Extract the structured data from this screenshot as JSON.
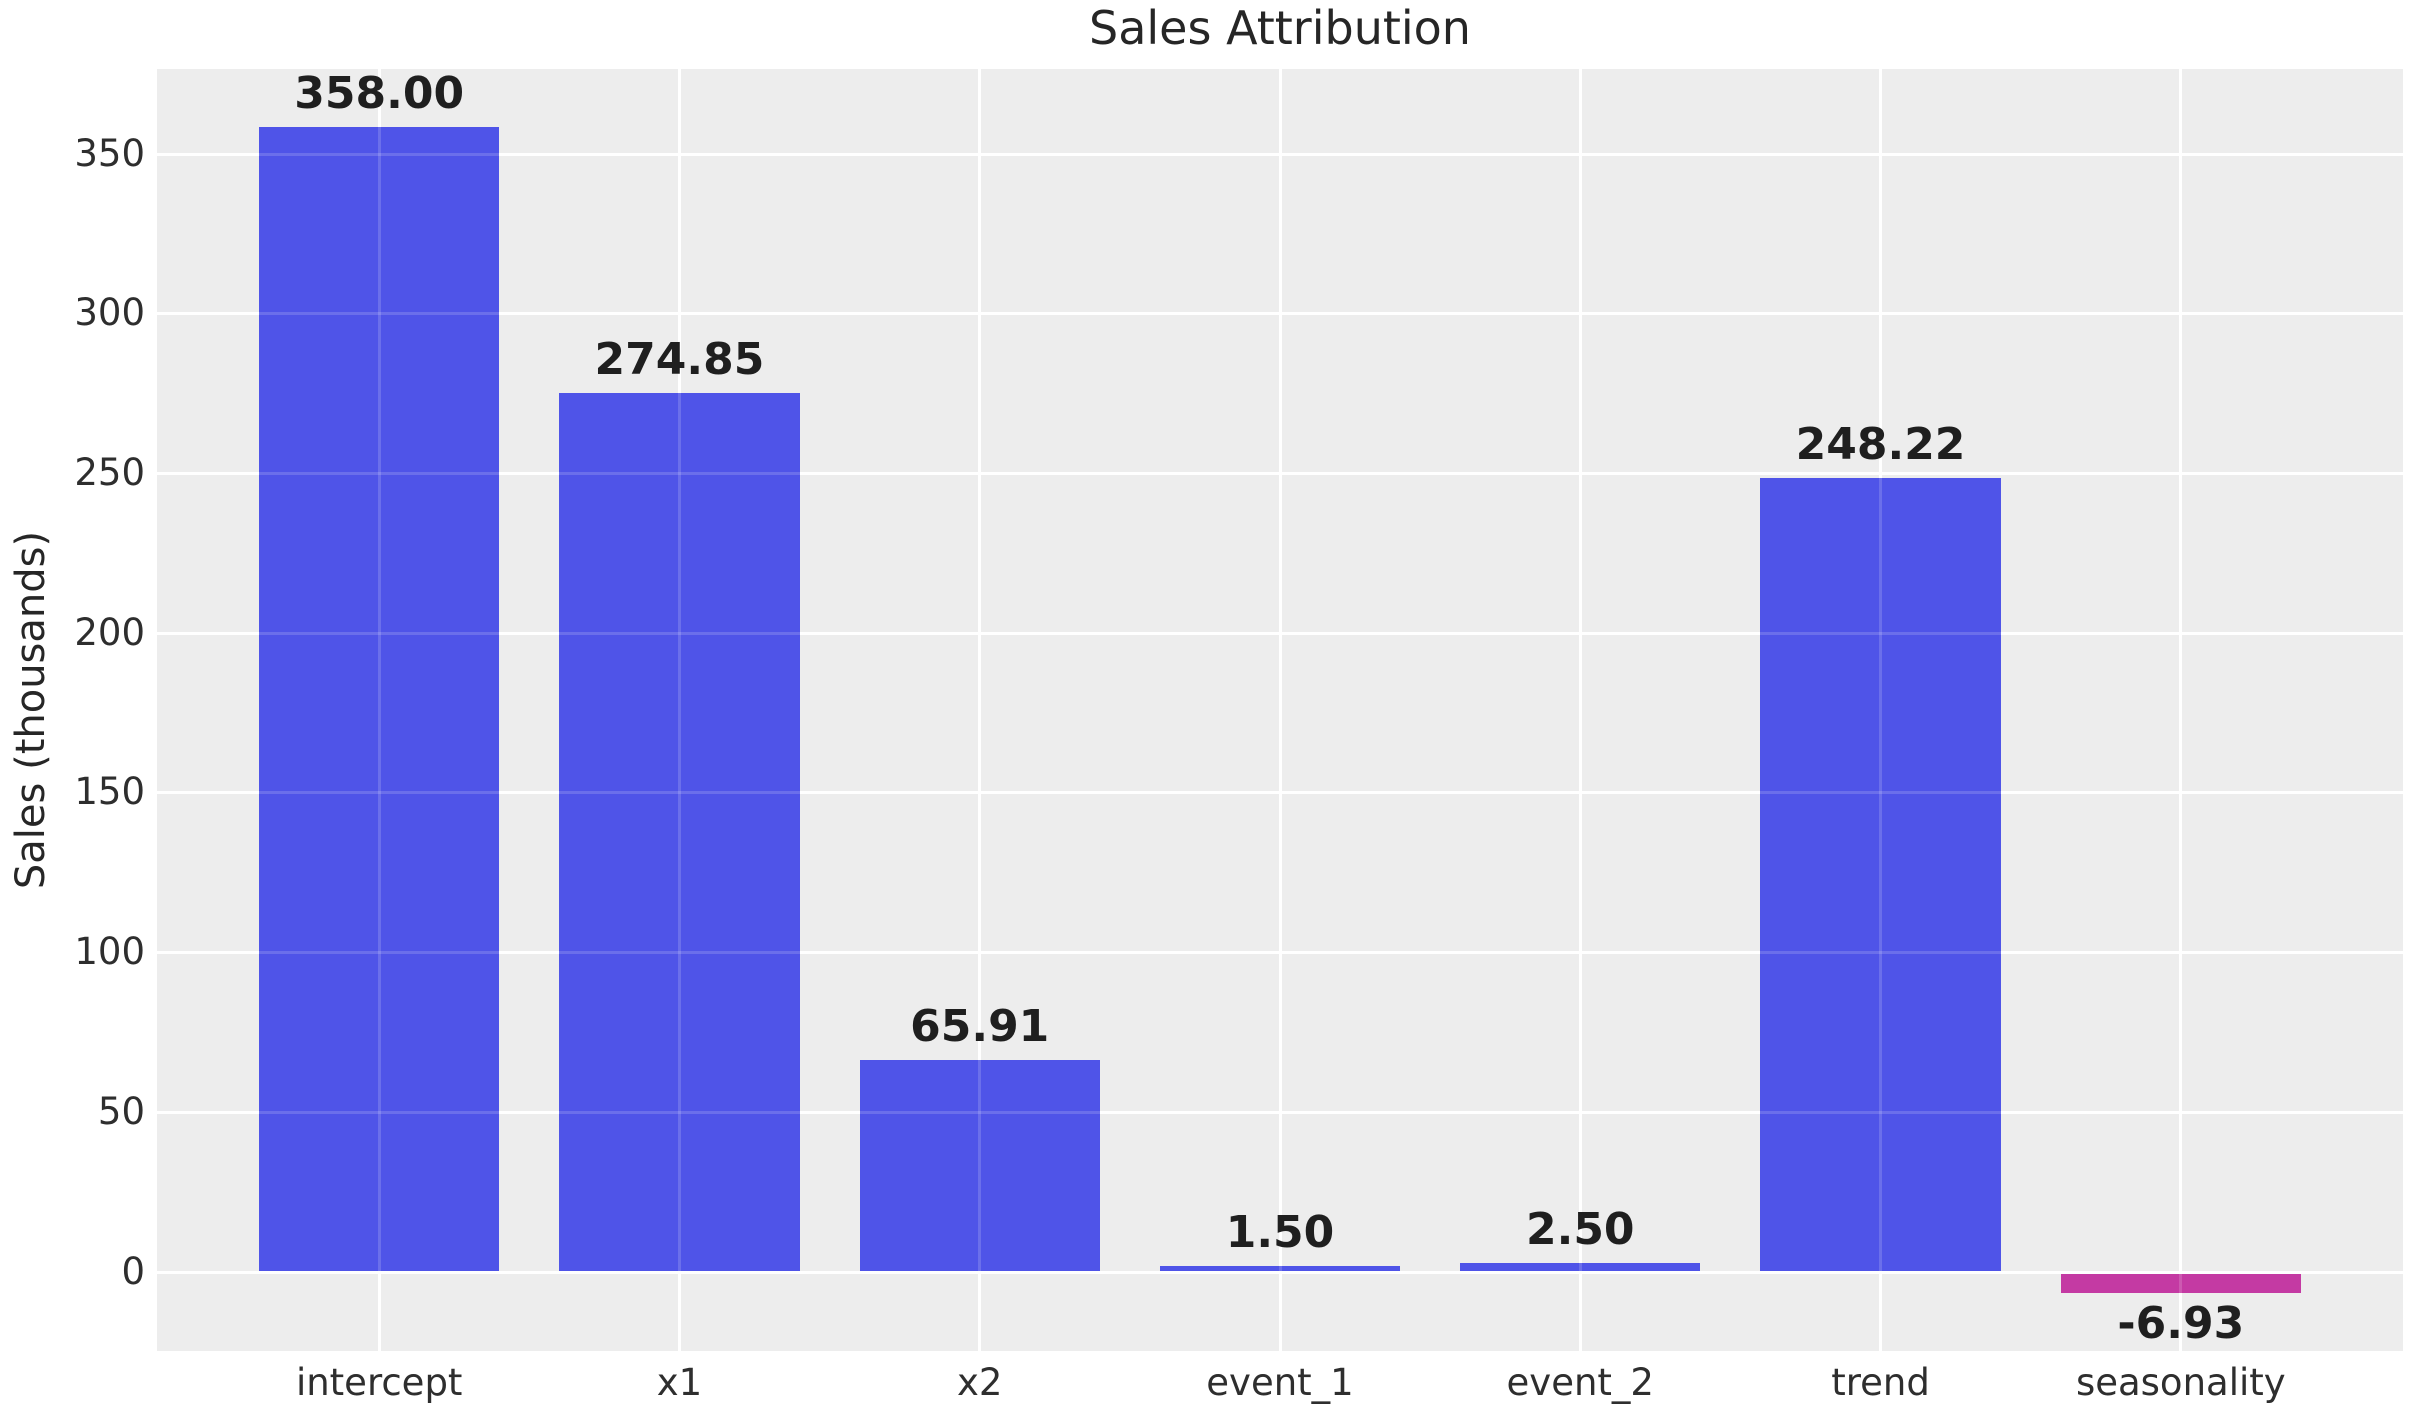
{
  "chart_data": {
    "type": "bar",
    "title": "Sales Attribution",
    "xlabel": "",
    "ylabel": "Sales (thousands)",
    "categories": [
      "intercept",
      "x1",
      "x2",
      "event_1",
      "event_2",
      "trend",
      "seasonality"
    ],
    "values": [
      358.0,
      274.85,
      65.91,
      1.5,
      2.5,
      248.22,
      -6.93
    ],
    "bar_labels": [
      "358.00",
      "274.85",
      "65.91",
      "1.50",
      "2.50",
      "248.22",
      "-6.93"
    ],
    "yticks": [
      0,
      50,
      100,
      150,
      200,
      250,
      300,
      350
    ],
    "ytick_labels": [
      "0",
      "50",
      "100",
      "150",
      "200",
      "250",
      "300",
      "350"
    ],
    "ylim": [
      -25.2,
      376.2
    ],
    "xlim_units": [
      -0.74,
      6.74
    ],
    "bar_width_units": 0.8,
    "grid": true,
    "legend": "none",
    "colors": {
      "positive_bar": "#4f54e8",
      "negative_bar": "#c43aa3",
      "plot_background": "#ededed",
      "grid_line": "#ffffff",
      "grid_overlay": "rgba(255,255,255,0.16)",
      "title_text": "#262626",
      "tick_text": "#2e2e2e",
      "value_label_text": "#1f1f1f"
    }
  }
}
